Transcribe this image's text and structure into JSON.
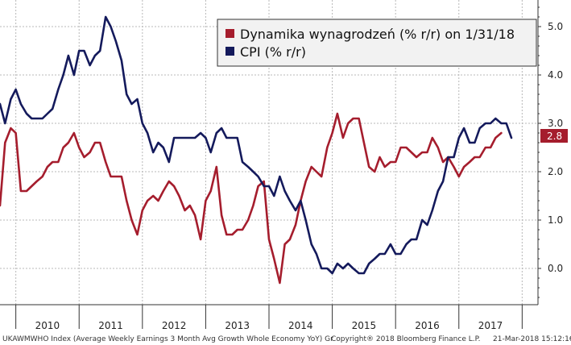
{
  "chart_data": {
    "type": "line",
    "title": "",
    "xlabel": "",
    "ylabel": "",
    "x_axis": {
      "start_year": 2009.75,
      "end_year": 2018.25,
      "year_labels": [
        "2010",
        "2011",
        "2012",
        "2013",
        "2014",
        "2015",
        "2016",
        "2017"
      ]
    },
    "y_axis": {
      "ylim": [
        -0.75,
        5.55
      ],
      "ticks": [
        0.0,
        1.0,
        2.0,
        3.0,
        4.0,
        5.0
      ],
      "tick_labels": [
        "0.0",
        "1.0",
        "2.0",
        "3.0",
        "4.0",
        "5.0"
      ],
      "position": "right"
    },
    "grid": true,
    "legend": {
      "placement": "top-right",
      "entries": [
        "Dynamika wynagrodzeń (% r/r) on 1/31/18",
        "CPI (% r/r)"
      ]
    },
    "series": [
      {
        "name": "Dynamika wynagrodzeń (% r/r) on 1/31/18",
        "color": "#a51d2d",
        "last_value_label": "2.8",
        "points": [
          [
            2009.75,
            1.3
          ],
          [
            2009.83,
            2.6
          ],
          [
            2009.92,
            2.9
          ],
          [
            2010.0,
            2.8
          ],
          [
            2010.08,
            1.6
          ],
          [
            2010.17,
            1.6
          ],
          [
            2010.25,
            1.7
          ],
          [
            2010.33,
            1.8
          ],
          [
            2010.42,
            1.9
          ],
          [
            2010.5,
            2.1
          ],
          [
            2010.58,
            2.2
          ],
          [
            2010.67,
            2.2
          ],
          [
            2010.75,
            2.5
          ],
          [
            2010.83,
            2.6
          ],
          [
            2010.92,
            2.8
          ],
          [
            2011.0,
            2.5
          ],
          [
            2011.08,
            2.3
          ],
          [
            2011.17,
            2.4
          ],
          [
            2011.25,
            2.6
          ],
          [
            2011.33,
            2.6
          ],
          [
            2011.42,
            2.2
          ],
          [
            2011.5,
            1.9
          ],
          [
            2011.58,
            1.9
          ],
          [
            2011.67,
            1.9
          ],
          [
            2011.75,
            1.4
          ],
          [
            2011.83,
            1.0
          ],
          [
            2011.92,
            0.7
          ],
          [
            2012.0,
            1.2
          ],
          [
            2012.08,
            1.4
          ],
          [
            2012.17,
            1.5
          ],
          [
            2012.25,
            1.4
          ],
          [
            2012.33,
            1.6
          ],
          [
            2012.42,
            1.8
          ],
          [
            2012.5,
            1.7
          ],
          [
            2012.58,
            1.5
          ],
          [
            2012.67,
            1.2
          ],
          [
            2012.75,
            1.3
          ],
          [
            2012.83,
            1.1
          ],
          [
            2012.92,
            0.6
          ],
          [
            2013.0,
            1.4
          ],
          [
            2013.08,
            1.6
          ],
          [
            2013.17,
            2.1
          ],
          [
            2013.25,
            1.1
          ],
          [
            2013.33,
            0.7
          ],
          [
            2013.42,
            0.7
          ],
          [
            2013.5,
            0.8
          ],
          [
            2013.58,
            0.8
          ],
          [
            2013.67,
            1.0
          ],
          [
            2013.75,
            1.3
          ],
          [
            2013.83,
            1.7
          ],
          [
            2013.92,
            1.8
          ],
          [
            2014.0,
            0.6
          ],
          [
            2014.08,
            0.2
          ],
          [
            2014.17,
            -0.3
          ],
          [
            2014.25,
            0.5
          ],
          [
            2014.33,
            0.6
          ],
          [
            2014.42,
            0.9
          ],
          [
            2014.5,
            1.4
          ],
          [
            2014.58,
            1.8
          ],
          [
            2014.67,
            2.1
          ],
          [
            2014.75,
            2.0
          ],
          [
            2014.83,
            1.9
          ],
          [
            2014.92,
            2.5
          ],
          [
            2015.0,
            2.8
          ],
          [
            2015.08,
            3.2
          ],
          [
            2015.17,
            2.7
          ],
          [
            2015.25,
            3.0
          ],
          [
            2015.33,
            3.1
          ],
          [
            2015.42,
            3.1
          ],
          [
            2015.5,
            2.6
          ],
          [
            2015.58,
            2.1
          ],
          [
            2015.67,
            2.0
          ],
          [
            2015.75,
            2.3
          ],
          [
            2015.83,
            2.1
          ],
          [
            2015.92,
            2.2
          ],
          [
            2016.0,
            2.2
          ],
          [
            2016.08,
            2.5
          ],
          [
            2016.17,
            2.5
          ],
          [
            2016.25,
            2.4
          ],
          [
            2016.33,
            2.3
          ],
          [
            2016.42,
            2.4
          ],
          [
            2016.5,
            2.4
          ],
          [
            2016.58,
            2.7
          ],
          [
            2016.67,
            2.5
          ],
          [
            2016.75,
            2.2
          ],
          [
            2016.83,
            2.3
          ],
          [
            2016.92,
            2.1
          ],
          [
            2017.0,
            1.9
          ],
          [
            2017.08,
            2.1
          ],
          [
            2017.17,
            2.2
          ],
          [
            2017.25,
            2.3
          ],
          [
            2017.33,
            2.3
          ],
          [
            2017.42,
            2.5
          ],
          [
            2017.5,
            2.5
          ],
          [
            2017.58,
            2.7
          ],
          [
            2017.67,
            2.8
          ]
        ]
      },
      {
        "name": "CPI (% r/r)",
        "color": "#141a5c",
        "last_value_label": "",
        "points": [
          [
            2009.75,
            3.4
          ],
          [
            2009.83,
            3.0
          ],
          [
            2009.92,
            3.5
          ],
          [
            2010.0,
            3.7
          ],
          [
            2010.08,
            3.4
          ],
          [
            2010.17,
            3.2
          ],
          [
            2010.25,
            3.1
          ],
          [
            2010.33,
            3.1
          ],
          [
            2010.42,
            3.1
          ],
          [
            2010.5,
            3.2
          ],
          [
            2010.58,
            3.3
          ],
          [
            2010.67,
            3.7
          ],
          [
            2010.75,
            4.0
          ],
          [
            2010.83,
            4.4
          ],
          [
            2010.92,
            4.0
          ],
          [
            2011.0,
            4.5
          ],
          [
            2011.08,
            4.5
          ],
          [
            2011.17,
            4.2
          ],
          [
            2011.25,
            4.4
          ],
          [
            2011.33,
            4.5
          ],
          [
            2011.42,
            5.2
          ],
          [
            2011.5,
            5.0
          ],
          [
            2011.58,
            4.7
          ],
          [
            2011.67,
            4.3
          ],
          [
            2011.75,
            3.6
          ],
          [
            2011.83,
            3.4
          ],
          [
            2011.92,
            3.5
          ],
          [
            2012.0,
            3.0
          ],
          [
            2012.08,
            2.8
          ],
          [
            2012.17,
            2.4
          ],
          [
            2012.25,
            2.6
          ],
          [
            2012.33,
            2.5
          ],
          [
            2012.42,
            2.2
          ],
          [
            2012.5,
            2.7
          ],
          [
            2012.58,
            2.7
          ],
          [
            2012.67,
            2.7
          ],
          [
            2012.75,
            2.7
          ],
          [
            2012.83,
            2.7
          ],
          [
            2012.92,
            2.8
          ],
          [
            2013.0,
            2.7
          ],
          [
            2013.08,
            2.4
          ],
          [
            2013.17,
            2.8
          ],
          [
            2013.25,
            2.9
          ],
          [
            2013.33,
            2.7
          ],
          [
            2013.42,
            2.7
          ],
          [
            2013.5,
            2.7
          ],
          [
            2013.58,
            2.2
          ],
          [
            2013.67,
            2.1
          ],
          [
            2013.75,
            2.0
          ],
          [
            2013.83,
            1.9
          ],
          [
            2013.92,
            1.7
          ],
          [
            2014.0,
            1.7
          ],
          [
            2014.08,
            1.5
          ],
          [
            2014.17,
            1.9
          ],
          [
            2014.25,
            1.6
          ],
          [
            2014.33,
            1.4
          ],
          [
            2014.42,
            1.2
          ],
          [
            2014.5,
            1.4
          ],
          [
            2014.58,
            1.0
          ],
          [
            2014.67,
            0.5
          ],
          [
            2014.75,
            0.3
          ],
          [
            2014.83,
            0.0
          ],
          [
            2014.92,
            0.0
          ],
          [
            2015.0,
            -0.1
          ],
          [
            2015.08,
            0.1
          ],
          [
            2015.17,
            0.0
          ],
          [
            2015.25,
            0.1
          ],
          [
            2015.33,
            0.0
          ],
          [
            2015.42,
            -0.1
          ],
          [
            2015.5,
            -0.1
          ],
          [
            2015.58,
            0.1
          ],
          [
            2015.67,
            0.2
          ],
          [
            2015.75,
            0.3
          ],
          [
            2015.83,
            0.3
          ],
          [
            2015.92,
            0.5
          ],
          [
            2016.0,
            0.3
          ],
          [
            2016.08,
            0.3
          ],
          [
            2016.17,
            0.5
          ],
          [
            2016.25,
            0.6
          ],
          [
            2016.33,
            0.6
          ],
          [
            2016.42,
            1.0
          ],
          [
            2016.5,
            0.9
          ],
          [
            2016.58,
            1.2
          ],
          [
            2016.67,
            1.6
          ],
          [
            2016.75,
            1.8
          ],
          [
            2016.83,
            2.3
          ],
          [
            2016.92,
            2.3
          ],
          [
            2017.0,
            2.7
          ],
          [
            2017.08,
            2.9
          ],
          [
            2017.17,
            2.6
          ],
          [
            2017.25,
            2.6
          ],
          [
            2017.33,
            2.9
          ],
          [
            2017.42,
            3.0
          ],
          [
            2017.5,
            3.0
          ],
          [
            2017.58,
            3.1
          ],
          [
            2017.67,
            3.0
          ],
          [
            2017.75,
            3.0
          ],
          [
            2017.83,
            2.7
          ]
        ]
      }
    ]
  },
  "footer": {
    "left": "UKAWMWHO Index (Average Weekly Earnings 3 Month Avg Growth Whole Economy YoY) Gr",
    "middle": "Copyright® 2018 Bloomberg Finance L.P.",
    "right": "21-Mar-2018 15:12:16"
  },
  "colors": {
    "wages": "#a51d2d",
    "cpi": "#141a5c",
    "legend_bg": "#f2f2f2",
    "grid": "#b8b8b8"
  }
}
